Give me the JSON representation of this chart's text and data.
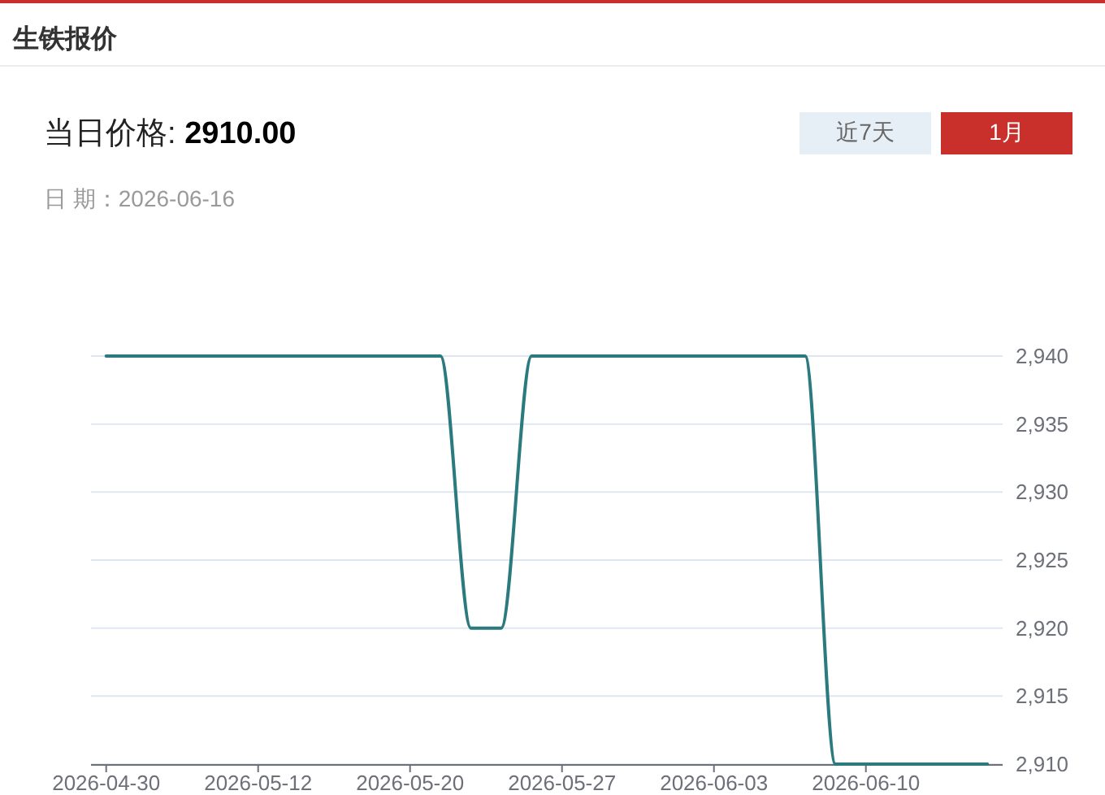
{
  "chart_data": {
    "type": "line",
    "title": "生铁报价",
    "subtitle": "当日价格: 2910.00",
    "annotations": [
      "日 期：2026-06-16",
      "近7天",
      "1月"
    ],
    "categories": [
      "2026-04-30",
      null,
      null,
      null,
      null,
      "2026-05-12",
      null,
      null,
      null,
      null,
      "2026-05-20",
      null,
      null,
      null,
      null,
      "2026-05-27",
      null,
      null,
      null,
      null,
      "2026-06-03",
      null,
      null,
      null,
      null,
      "2026-06-10",
      null,
      null,
      null,
      null
    ],
    "series": [
      {
        "color": "#2b7a7e",
        "values": [
          2940,
          2940,
          2940,
          2940,
          2940,
          2940,
          2940,
          2940,
          2940,
          2940,
          2940,
          2940,
          2920,
          2920,
          2940,
          2940,
          2940,
          2940,
          2940,
          2940,
          2940,
          2940,
          2940,
          2940,
          2910,
          2910,
          2910,
          2910,
          2910,
          2910
        ]
      }
    ],
    "ylim": [
      2910,
      2940
    ],
    "yticks": [
      {
        "value": 2910,
        "label": "2,910"
      },
      {
        "value": 2915,
        "label": "2,915"
      },
      {
        "value": 2920,
        "label": "2,920"
      },
      {
        "value": 2925,
        "label": "2,925"
      },
      {
        "value": 2930,
        "label": "2,930"
      },
      {
        "value": 2935,
        "label": "2,935"
      },
      {
        "value": 2940,
        "label": "2,940"
      }
    ],
    "grid": "y"
  }
}
